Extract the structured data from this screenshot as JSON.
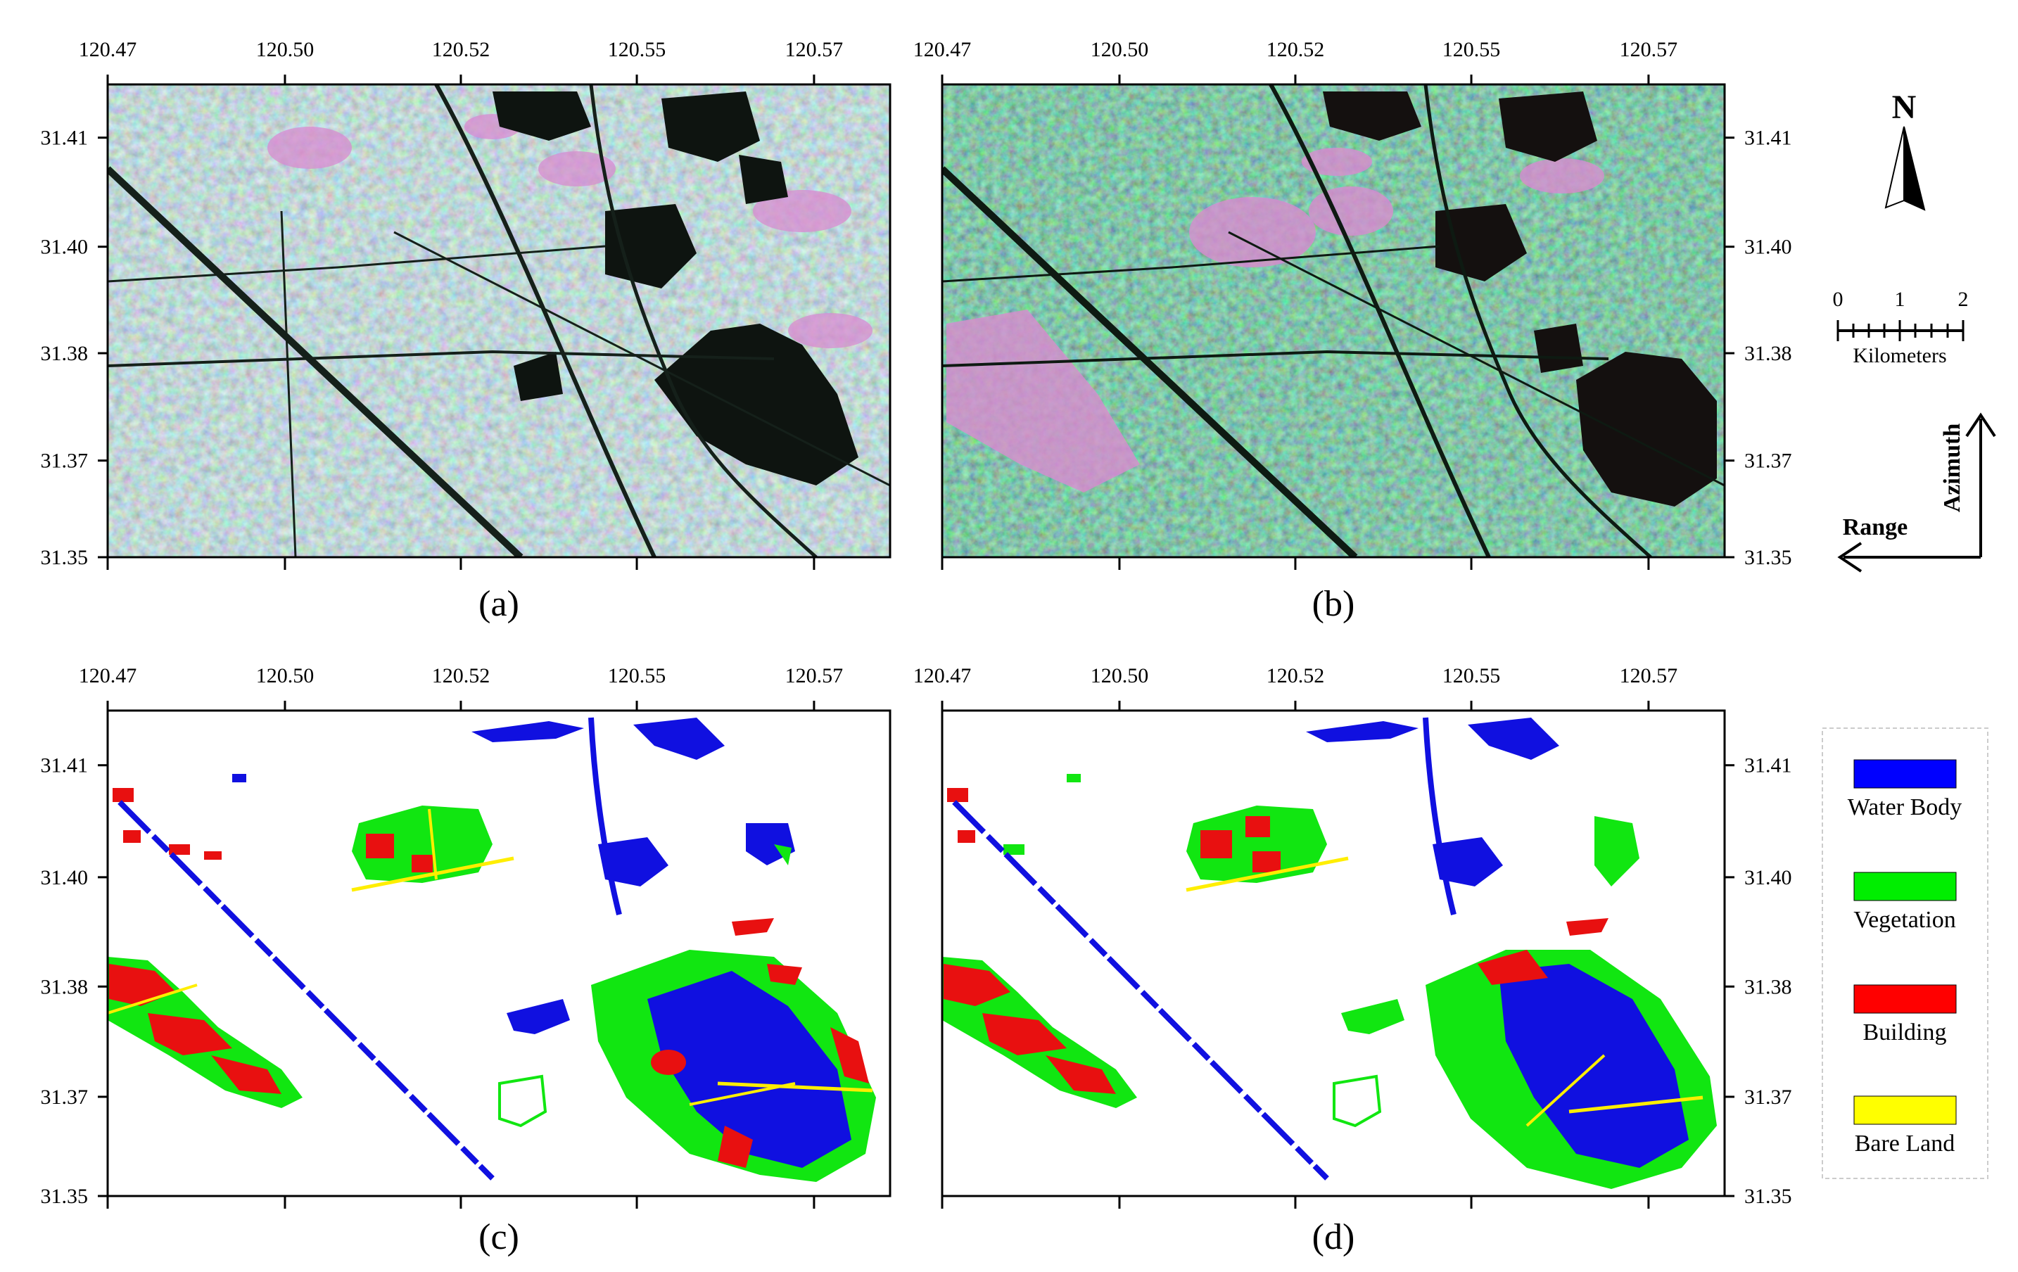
{
  "axes": {
    "x_ticks": [
      "120.47",
      "120.50",
      "120.52",
      "120.55",
      "120.57"
    ],
    "y_ticks": [
      "31.41",
      "31.40",
      "31.38",
      "31.37",
      "31.35"
    ]
  },
  "panels": [
    {
      "id": "a",
      "caption": "(a)",
      "kind": "sar-image",
      "tint": "cyan"
    },
    {
      "id": "b",
      "caption": "(b)",
      "kind": "sar-image",
      "tint": "green"
    },
    {
      "id": "c",
      "caption": "(c)",
      "kind": "classification"
    },
    {
      "id": "d",
      "caption": "(d)",
      "kind": "classification"
    }
  ],
  "north_arrow": {
    "label": "N"
  },
  "scale_bar": {
    "ticks": [
      "0",
      "1",
      "2"
    ],
    "unit": "Kilometers"
  },
  "direction": {
    "azimuth": "Azimuth",
    "range": "Range"
  },
  "legend": {
    "items": [
      {
        "label": "Water Body",
        "color": "#0000ff"
      },
      {
        "label": "Vegetation",
        "color": "#00ee00"
      },
      {
        "label": "Building",
        "color": "#ff0000"
      },
      {
        "label": "Bare Land",
        "color": "#ffff00"
      }
    ]
  },
  "colors": {
    "water": "#1010e0",
    "vegetation": "#11e611",
    "building": "#e81010",
    "bare_land": "#ffee00",
    "sar_a_base": "#7fb3b0",
    "sar_b_base": "#2f7a5a",
    "sar_dark": "#111a14",
    "sar_pink": "#d88bd0"
  }
}
